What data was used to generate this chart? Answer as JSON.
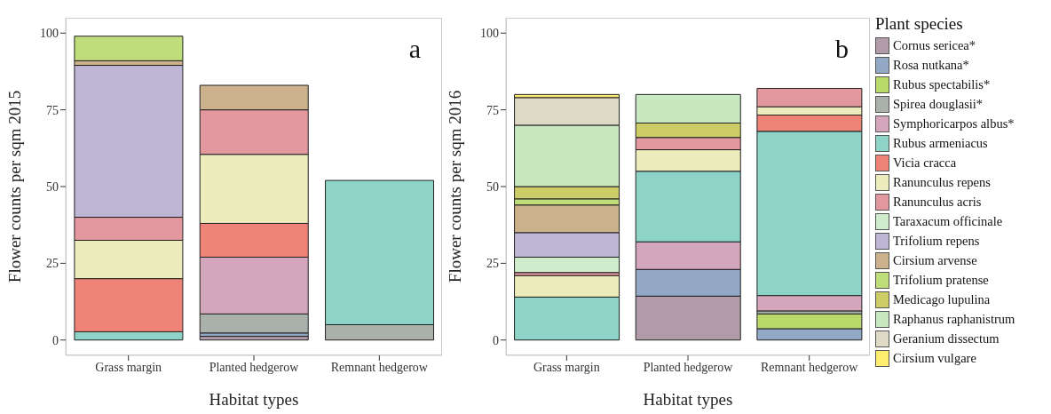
{
  "chart_data": [
    {
      "type": "bar",
      "stacked": true,
      "categories": [
        "Grass margin",
        "Planted hedgerow",
        "Remnant hedgerow"
      ],
      "xlabel": "Habitat types",
      "ylabel": "Flower counts per sqm 2015",
      "ylim": [
        -5,
        105
      ],
      "yticks": [
        0,
        25,
        50,
        75,
        100
      ],
      "grid": false,
      "legend": false,
      "annotations": [
        "a"
      ],
      "series": [
        {
          "color": "#b19ba8",
          "values": [
            null,
            1.2,
            null
          ]
        },
        {
          "color": "#93a8c4",
          "values": [
            null,
            1.1,
            null
          ]
        },
        {
          "color": "#aab1aa",
          "values": [
            null,
            6.2,
            5
          ]
        },
        {
          "color": "#d4a6bb",
          "values": [
            null,
            18.5,
            null
          ]
        },
        {
          "color": "#8dd3c7",
          "values": [
            2.7,
            null,
            47
          ]
        },
        {
          "color": "#f08378",
          "values": [
            17.3,
            11,
            null
          ]
        },
        {
          "color": "#ececbc",
          "values": [
            12.5,
            22.5,
            null
          ]
        },
        {
          "color": "#e3979e",
          "values": [
            7.5,
            14.5,
            null
          ]
        },
        {
          "color": "#bfb6d6",
          "values": [
            49.5,
            null,
            null
          ]
        },
        {
          "color": "#cbb28c",
          "values": [
            1.5,
            8,
            null
          ]
        },
        {
          "color": "#c0dd7c",
          "values": [
            8,
            null,
            null
          ]
        }
      ]
    },
    {
      "type": "bar",
      "stacked": true,
      "categories": [
        "Grass margin",
        "Planted hedgerow",
        "Remnant hedgerow"
      ],
      "xlabel": "Habitat types",
      "ylabel": "Flower counts per sqm 2016",
      "ylim": [
        -5,
        105
      ],
      "yticks": [
        0,
        25,
        50,
        75,
        100
      ],
      "grid": false,
      "legend": "right",
      "legend_title": "Plant species",
      "annotations": [
        "b"
      ],
      "series": [
        {
          "name": "Cornus sericea*",
          "color": "#b19ba8",
          "values": [
            null,
            14.3,
            null
          ]
        },
        {
          "name": "Rosa nutkana*",
          "color": "#93a8c4",
          "values": [
            null,
            8.7,
            3.7
          ]
        },
        {
          "name": "Rubus spectabilis*",
          "color": "#b9da6a",
          "values": [
            null,
            null,
            4.8
          ]
        },
        {
          "name": "Spirea douglasii*",
          "color": "#aab1aa",
          "values": [
            null,
            null,
            1
          ]
        },
        {
          "name": "Symphoricarpos albus*",
          "color": "#d4a6bb",
          "values": [
            null,
            9,
            5
          ]
        },
        {
          "name": "Rubus armeniacus",
          "color": "#8dd3c7",
          "values": [
            14,
            23,
            53.5
          ]
        },
        {
          "name": "Vicia cracca",
          "color": "#f08378",
          "values": [
            null,
            null,
            5.3
          ]
        },
        {
          "name": "Ranunculus repens",
          "color": "#ececbc",
          "values": [
            7,
            7,
            2.7
          ]
        },
        {
          "name": "Ranunculus acris",
          "color": "#e3979e",
          "values": [
            1,
            4,
            6
          ]
        },
        {
          "name": "Taraxacum officinale",
          "color": "#cfeccd",
          "values": [
            5,
            null,
            null
          ]
        },
        {
          "name": "Trifolium repens",
          "color": "#bfb6d6",
          "values": [
            8,
            null,
            null
          ]
        },
        {
          "name": "Cirsium arvense",
          "color": "#cbb28c",
          "values": [
            9,
            null,
            null
          ]
        },
        {
          "name": "Trifolium pratense",
          "color": "#c0dd7c",
          "values": [
            2,
            null,
            null
          ]
        },
        {
          "name": "Medicago lupulina",
          "color": "#cccd66",
          "values": [
            4,
            4.7,
            null
          ]
        },
        {
          "name": "Raphanus raphanistrum",
          "color": "#c8e9c0",
          "values": [
            20,
            9.3,
            null
          ]
        },
        {
          "name": "Geranium dissectum",
          "color": "#dedac6",
          "values": [
            9,
            null,
            null
          ]
        },
        {
          "name": "Cirsium vulgare",
          "color": "#ffed6f",
          "values": [
            1,
            null,
            null
          ]
        }
      ]
    }
  ]
}
